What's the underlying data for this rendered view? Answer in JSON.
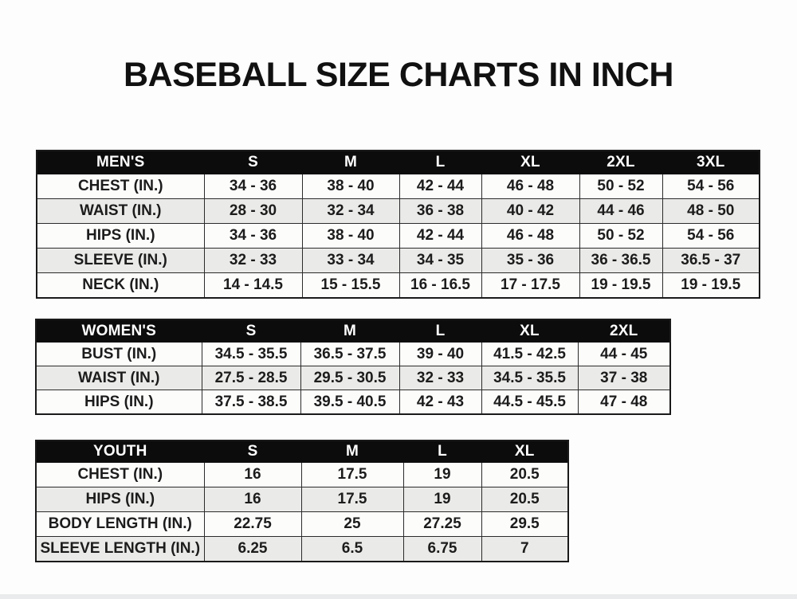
{
  "page": {
    "title": "BASEBALL SIZE CHARTS IN INCH"
  },
  "colors": {
    "page_background": "#fdfdfd",
    "header_background": "#0c0c0c",
    "header_text": "#ffffff",
    "row_stripe_gray": "#eaeae8",
    "row_white": "#fcfcfb",
    "border": "#2b2b2b",
    "body_text": "#1c1c1c",
    "bottom_strip": "#e9ebec"
  },
  "chart_data": [
    {
      "type": "table",
      "title": "MEN'S",
      "columns": [
        "MEN'S",
        "S",
        "M",
        "L",
        "XL",
        "2XL",
        "3XL"
      ],
      "rows": [
        {
          "label": "CHEST (IN.)",
          "values": [
            "34 - 36",
            "38 - 40",
            "42 - 44",
            "46 - 48",
            "50 - 52",
            "54 - 56"
          ]
        },
        {
          "label": "WAIST (IN.)",
          "values": [
            "28 - 30",
            "32 - 34",
            "36 - 38",
            "40 - 42",
            "44 - 46",
            "48 - 50"
          ]
        },
        {
          "label": "HIPS (IN.)",
          "values": [
            "34 - 36",
            "38 - 40",
            "42 - 44",
            "46 - 48",
            "50 - 52",
            "54 - 56"
          ]
        },
        {
          "label": "SLEEVE (IN.)",
          "values": [
            "32 - 33",
            "33 - 34",
            "34 - 35",
            "35 - 36",
            "36 - 36.5",
            "36.5 - 37"
          ]
        },
        {
          "label": "NECK (IN.)",
          "values": [
            "14 - 14.5",
            "15 - 15.5",
            "16 - 16.5",
            "17 - 17.5",
            "19 - 19.5",
            "19 - 19.5"
          ]
        }
      ]
    },
    {
      "type": "table",
      "title": "WOMEN'S",
      "columns": [
        "WOMEN'S",
        "S",
        "M",
        "L",
        "XL",
        "2XL"
      ],
      "rows": [
        {
          "label": "BUST (IN.)",
          "values": [
            "34.5 - 35.5",
            "36.5 - 37.5",
            "39 - 40",
            "41.5 - 42.5",
            "44 - 45"
          ]
        },
        {
          "label": "WAIST (IN.)",
          "values": [
            "27.5 - 28.5",
            "29.5 - 30.5",
            "32 - 33",
            "34.5 - 35.5",
            "37 - 38"
          ]
        },
        {
          "label": "HIPS (IN.)",
          "values": [
            "37.5 - 38.5",
            "39.5 - 40.5",
            "42 - 43",
            "44.5 - 45.5",
            "47 - 48"
          ]
        }
      ]
    },
    {
      "type": "table",
      "title": "YOUTH",
      "columns": [
        "YOUTH",
        "S",
        "M",
        "L",
        "XL"
      ],
      "rows": [
        {
          "label": "CHEST (IN.)",
          "values": [
            "16",
            "17.5",
            "19",
            "20.5"
          ]
        },
        {
          "label": "HIPS (IN.)",
          "values": [
            "16",
            "17.5",
            "19",
            "20.5"
          ]
        },
        {
          "label": "BODY LENGTH (IN.)",
          "values": [
            "22.75",
            "25",
            "27.25",
            "29.5"
          ]
        },
        {
          "label": "SLEEVE LENGTH (IN.)",
          "values": [
            "6.25",
            "6.5",
            "6.75",
            "7"
          ]
        }
      ]
    }
  ]
}
